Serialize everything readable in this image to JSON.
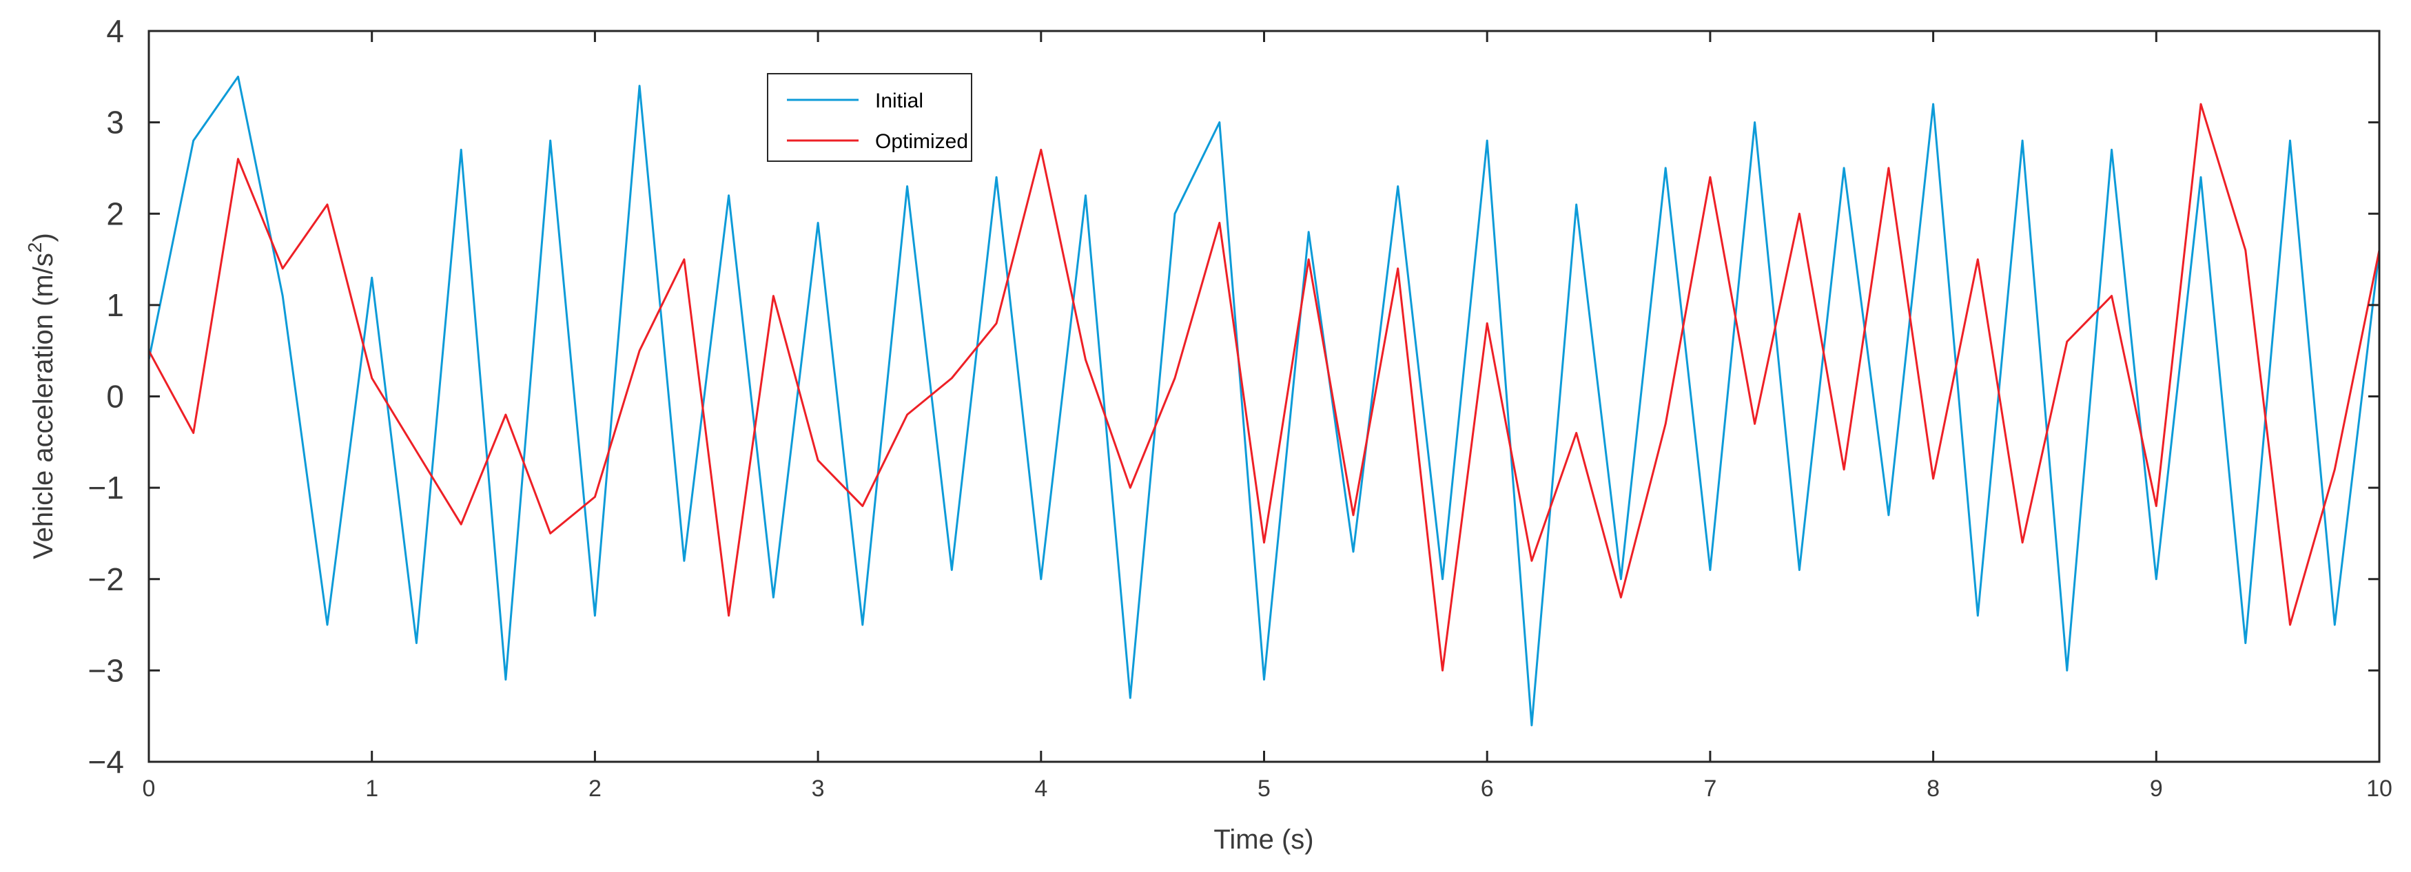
{
  "chart_data": {
    "type": "line",
    "title": "",
    "xlabel": "Time (s)",
    "ylabel": "Vehicle acceleration (m/s²)",
    "ylabel_main": "Vehicle acceleration (m/s",
    "ylabel_sup": "2",
    "ylabel_end": ")",
    "xlim": [
      0,
      10
    ],
    "ylim": [
      -4,
      4
    ],
    "xticks": [
      0,
      1,
      2,
      3,
      4,
      5,
      6,
      7,
      8,
      9,
      10
    ],
    "xtick_labels": [
      "0",
      "1",
      "2",
      "3",
      "4",
      "5",
      "6",
      "7",
      "8",
      "9",
      "10"
    ],
    "yticks": [
      4,
      3,
      2,
      1,
      0,
      -1,
      -2,
      -3,
      -4
    ],
    "ytick_labels": [
      "4",
      "3",
      "2",
      "1",
      "0",
      "−1",
      "−2",
      "−3",
      "−4"
    ],
    "grid": false,
    "legend_position": "top-center",
    "series": [
      {
        "name": "Initial",
        "color": "#0d9bd8",
        "x": [
          0,
          0.2,
          0.4,
          0.6,
          0.8,
          1,
          1.2,
          1.4,
          1.6,
          1.8,
          2,
          2.2,
          2.4,
          2.6,
          2.8,
          3,
          3.2,
          3.4,
          3.6,
          3.8,
          4,
          4.2,
          4.4,
          4.6,
          4.8,
          5,
          5.2,
          5.4,
          5.6,
          5.8,
          6,
          6.2,
          6.4,
          6.6,
          6.8,
          7,
          7.2,
          7.4,
          7.6,
          7.8,
          8,
          8.2,
          8.4,
          8.6,
          8.8,
          9,
          9.2,
          9.4,
          9.6,
          9.8,
          10
        ],
        "y": [
          0.4,
          2.8,
          3.5,
          1.1,
          -2.5,
          1.3,
          -2.7,
          2.7,
          -3.1,
          2.8,
          -2.4,
          3.4,
          -1.8,
          2.2,
          -2.2,
          1.9,
          -2.5,
          2.3,
          -1.9,
          2.4,
          -2,
          2.2,
          -3.3,
          2,
          3,
          -3.1,
          1.8,
          -1.7,
          2.3,
          -2,
          2.8,
          -3.6,
          2.1,
          -2,
          2.5,
          -1.9,
          3,
          -1.9,
          2.5,
          -1.3,
          3.2,
          -2.4,
          2.8,
          -3,
          2.7,
          -2,
          2.4,
          -2.7,
          2.8,
          -2.5,
          1.6
        ]
      },
      {
        "name": "Optimized",
        "color": "#ee2026",
        "x": [
          0,
          0.2,
          0.4,
          0.6,
          0.8,
          1,
          1.2,
          1.4,
          1.6,
          1.8,
          2,
          2.2,
          2.4,
          2.6,
          2.8,
          3,
          3.2,
          3.4,
          3.6,
          3.8,
          4,
          4.2,
          4.4,
          4.6,
          4.8,
          5,
          5.2,
          5.4,
          5.6,
          5.8,
          6,
          6.2,
          6.4,
          6.6,
          6.8,
          7,
          7.2,
          7.4,
          7.6,
          7.8,
          8,
          8.2,
          8.4,
          8.6,
          8.8,
          9,
          9.2,
          9.4,
          9.6,
          9.8,
          10
        ],
        "y": [
          0.5,
          -0.4,
          2.6,
          1.4,
          2.1,
          0.2,
          -0.6,
          -1.4,
          -0.2,
          -1.5,
          -1.1,
          0.5,
          1.5,
          -2.4,
          1.1,
          -0.7,
          -1.2,
          -0.2,
          0.2,
          0.8,
          2.7,
          0.4,
          -1,
          0.2,
          1.9,
          -1.6,
          1.5,
          -1.3,
          1.4,
          -3,
          0.8,
          -1.8,
          -0.4,
          -2.2,
          -0.3,
          2.4,
          -0.3,
          2,
          -0.8,
          2.5,
          -0.9,
          1.5,
          -1.6,
          0.6,
          1.1,
          -1.2,
          3.2,
          1.6,
          -2.5,
          -0.8,
          1.6
        ]
      }
    ]
  }
}
